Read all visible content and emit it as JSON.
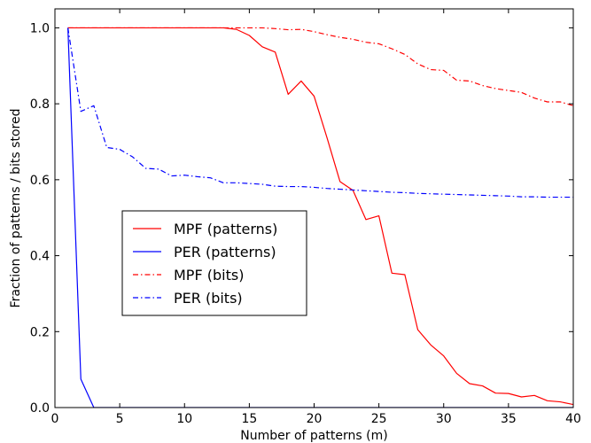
{
  "chart_data": {
    "type": "line",
    "title": "",
    "xlabel": "Number of patterns (m)",
    "ylabel": "Fraction of patterns / bits stored",
    "xlim": [
      0,
      40
    ],
    "ylim": [
      0,
      1.05
    ],
    "xticks": [
      0,
      5,
      10,
      15,
      20,
      25,
      30,
      35,
      40
    ],
    "yticks": [
      0.0,
      0.2,
      0.4,
      0.6,
      0.8,
      1.0
    ],
    "xtick_labels": [
      "0",
      "5",
      "10",
      "15",
      "20",
      "25",
      "30",
      "35",
      "40"
    ],
    "ytick_labels": [
      "0.0",
      "0.2",
      "0.4",
      "0.6",
      "0.8",
      "1.0"
    ],
    "grid": false,
    "legend_position": "center-left",
    "x": [
      1,
      2,
      3,
      4,
      5,
      6,
      7,
      8,
      9,
      10,
      11,
      12,
      13,
      14,
      15,
      16,
      17,
      18,
      19,
      20,
      21,
      22,
      23,
      24,
      25,
      26,
      27,
      28,
      29,
      30,
      31,
      32,
      33,
      34,
      35,
      36,
      37,
      38,
      39,
      40
    ],
    "series": [
      {
        "name": "MPF (patterns)",
        "color": "#ff0000",
        "linestyle": "solid",
        "values": [
          1.0,
          1.0,
          1.0,
          1.0,
          1.0,
          1.0,
          1.0,
          1.0,
          1.0,
          1.0,
          1.0,
          1.0,
          1.0,
          0.996,
          0.98,
          0.95,
          0.936,
          0.825,
          0.86,
          0.82,
          0.71,
          0.595,
          0.572,
          0.495,
          0.505,
          0.354,
          0.35,
          0.205,
          0.165,
          0.136,
          0.09,
          0.063,
          0.057,
          0.038,
          0.037,
          0.028,
          0.032,
          0.018,
          0.015,
          0.008
        ]
      },
      {
        "name": "PER (patterns)",
        "color": "#0000ff",
        "linestyle": "solid",
        "values": [
          1.0,
          0.075,
          0.0,
          0.0,
          0.0,
          0.0,
          0.0,
          0.0,
          0.0,
          0.0,
          0.0,
          0.0,
          0.0,
          0.0,
          0.0,
          0.0,
          0.0,
          0.0,
          0.0,
          0.0,
          0.0,
          0.0,
          0.0,
          0.0,
          0.0,
          0.0,
          0.0,
          0.0,
          0.0,
          0.0,
          0.0,
          0.0,
          0.0,
          0.0,
          0.0,
          0.0,
          0.0,
          0.0,
          0.0,
          0.0
        ]
      },
      {
        "name": "MPF (bits)",
        "color": "#ff0000",
        "linestyle": "dashdot",
        "values": [
          1.0,
          1.0,
          1.0,
          1.0,
          1.0,
          1.0,
          1.0,
          1.0,
          1.0,
          1.0,
          1.0,
          1.0,
          1.0,
          1.0,
          1.0,
          1.0,
          0.998,
          0.995,
          0.996,
          0.99,
          0.982,
          0.975,
          0.97,
          0.962,
          0.958,
          0.945,
          0.93,
          0.905,
          0.89,
          0.888,
          0.862,
          0.86,
          0.848,
          0.84,
          0.835,
          0.83,
          0.815,
          0.805,
          0.805,
          0.795
        ]
      },
      {
        "name": "PER (bits)",
        "color": "#0000ff",
        "linestyle": "dashdot",
        "values": [
          1.0,
          0.78,
          0.795,
          0.685,
          0.68,
          0.66,
          0.63,
          0.628,
          0.61,
          0.612,
          0.608,
          0.605,
          0.592,
          0.592,
          0.59,
          0.588,
          0.583,
          0.582,
          0.582,
          0.58,
          0.577,
          0.575,
          0.573,
          0.571,
          0.569,
          0.567,
          0.566,
          0.564,
          0.563,
          0.562,
          0.561,
          0.56,
          0.559,
          0.558,
          0.557,
          0.555,
          0.555,
          0.554,
          0.554,
          0.554
        ]
      }
    ]
  }
}
